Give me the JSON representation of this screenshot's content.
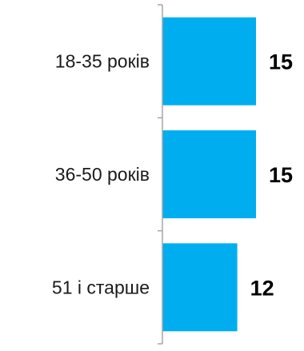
{
  "chart_data": {
    "type": "bar",
    "orientation": "horizontal",
    "categories": [
      "18-35 років",
      "36-50 років",
      "51 і старше"
    ],
    "values": [
      15,
      15,
      12
    ],
    "value_labels": [
      "15",
      "15",
      "12"
    ],
    "xlim": [
      0,
      15
    ],
    "grid": false,
    "legend": "none",
    "bar_color": "#00aeef",
    "axis_color": "#a6a6a6"
  }
}
